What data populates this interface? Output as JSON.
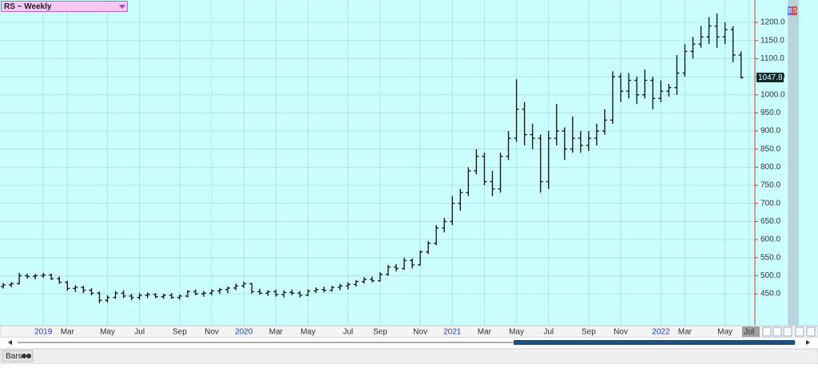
{
  "chart_data": {
    "type": "ohlc",
    "title": "RS ~ Weekly",
    "color": "#1a1a1a",
    "background": "#ccffff",
    "grid": true,
    "categories": [
      null,
      null,
      null,
      null,
      null,
      "2019",
      null,
      null,
      "Mar",
      null,
      null,
      null,
      null,
      "May",
      null,
      null,
      null,
      "Jul",
      null,
      null,
      null,
      null,
      "Sep",
      null,
      null,
      null,
      "Nov",
      null,
      null,
      null,
      "2020",
      null,
      null,
      null,
      "Mar",
      null,
      null,
      null,
      "May",
      null,
      null,
      null,
      null,
      "Jul",
      null,
      null,
      null,
      "Sep",
      null,
      null,
      null,
      null,
      "Nov",
      null,
      null,
      null,
      "2021",
      null,
      null,
      null,
      "Mar",
      null,
      null,
      null,
      "May",
      null,
      null,
      null,
      "Jul",
      null,
      null,
      null,
      null,
      "Sep",
      null,
      null,
      null,
      "Nov",
      null,
      null,
      null,
      null,
      "2022",
      null,
      null,
      "Mar",
      null,
      null,
      null,
      null,
      "May",
      null,
      null,
      "Jul"
    ],
    "open": [
      470,
      475,
      478,
      500,
      498,
      500,
      502,
      492,
      482,
      465,
      468,
      460,
      452,
      432,
      440,
      452,
      444,
      440,
      446,
      448,
      442,
      446,
      440,
      444,
      456,
      450,
      452,
      458,
      462,
      466,
      472,
      478,
      456,
      452,
      456,
      448,
      454,
      452,
      446,
      458,
      462,
      460,
      468,
      472,
      476,
      484,
      490,
      486,
      504,
      524,
      520,
      542,
      530,
      566,
      590,
      632,
      650,
      700,
      730,
      790,
      830,
      760,
      740,
      830,
      880,
      960,
      890,
      880,
      760,
      880,
      900,
      850,
      880,
      860,
      880,
      900,
      930,
      1050,
      1010,
      1040,
      1000,
      1040,
      990,
      1010,
      1020,
      1060,
      1120,
      1140,
      1160,
      1190,
      1160,
      1180,
      1110,
      null
    ],
    "high": [
      480,
      482,
      508,
      506,
      505,
      508,
      506,
      498,
      486,
      474,
      472,
      466,
      456,
      446,
      458,
      460,
      450,
      452,
      454,
      452,
      450,
      452,
      448,
      460,
      462,
      458,
      462,
      466,
      470,
      478,
      484,
      480,
      464,
      460,
      462,
      460,
      462,
      458,
      462,
      468,
      470,
      472,
      478,
      482,
      488,
      496,
      498,
      510,
      530,
      532,
      550,
      548,
      570,
      596,
      640,
      660,
      720,
      740,
      800,
      850,
      840,
      790,
      840,
      900,
      1043,
      980,
      920,
      890,
      900,
      975,
      910,
      940,
      900,
      900,
      920,
      960,
      1065,
      1060,
      1060,
      1050,
      1070,
      1050,
      1040,
      1030,
      1110,
      1140,
      1160,
      1190,
      1215,
      1225,
      1200,
      1190,
      1120,
      null
    ],
    "low": [
      465,
      468,
      476,
      492,
      490,
      494,
      488,
      478,
      458,
      455,
      452,
      446,
      424,
      426,
      436,
      438,
      432,
      434,
      438,
      438,
      436,
      436,
      434,
      440,
      446,
      442,
      446,
      450,
      452,
      460,
      466,
      450,
      448,
      444,
      442,
      440,
      446,
      440,
      444,
      452,
      454,
      456,
      460,
      462,
      470,
      478,
      482,
      484,
      500,
      512,
      516,
      520,
      528,
      560,
      584,
      620,
      640,
      680,
      720,
      780,
      750,
      720,
      730,
      820,
      870,
      860,
      850,
      730,
      740,
      860,
      820,
      840,
      840,
      845,
      860,
      890,
      920,
      980,
      990,
      975,
      990,
      960,
      980,
      995,
      1000,
      1050,
      1100,
      1130,
      1140,
      1130,
      1140,
      1090,
      1045,
      null
    ],
    "close": [
      475,
      478,
      500,
      498,
      500,
      502,
      492,
      482,
      465,
      468,
      460,
      452,
      432,
      440,
      452,
      444,
      440,
      446,
      448,
      442,
      446,
      440,
      444,
      456,
      450,
      452,
      458,
      462,
      466,
      472,
      478,
      456,
      452,
      456,
      448,
      454,
      452,
      446,
      458,
      462,
      460,
      468,
      472,
      476,
      484,
      490,
      486,
      504,
      524,
      520,
      542,
      530,
      566,
      590,
      632,
      650,
      700,
      730,
      790,
      830,
      760,
      740,
      830,
      880,
      960,
      890,
      880,
      760,
      880,
      900,
      850,
      880,
      860,
      880,
      900,
      930,
      1050,
      1010,
      1040,
      1000,
      1040,
      990,
      1010,
      1020,
      1060,
      1120,
      1140,
      1160,
      1190,
      1160,
      1180,
      1110,
      1047.8,
      null
    ],
    "ylim": [
      362,
      1262
    ],
    "yticks": [
      {
        "value": 450,
        "label": "450.0"
      },
      {
        "value": 500,
        "label": "500.0"
      },
      {
        "value": 550,
        "label": "550.0"
      },
      {
        "value": 600,
        "label": "600.0"
      },
      {
        "value": 650,
        "label": "650.0"
      },
      {
        "value": 700,
        "label": "700.0"
      },
      {
        "value": 750,
        "label": "750.0"
      },
      {
        "value": 800,
        "label": "800.0"
      },
      {
        "value": 850,
        "label": "850.0"
      },
      {
        "value": 900,
        "label": "900.0"
      },
      {
        "value": 950,
        "label": "950.0"
      },
      {
        "value": 1000,
        "label": "1000.0"
      },
      {
        "value": 1050,
        "label": "1050.0"
      },
      {
        "value": 1100,
        "label": "1100.0"
      },
      {
        "value": 1150,
        "label": "1150.0"
      },
      {
        "value": 1200,
        "label": "1200.0"
      }
    ]
  },
  "toolbar": {
    "badges": [
      "B",
      "S"
    ],
    "footer_label": "Bars"
  }
}
